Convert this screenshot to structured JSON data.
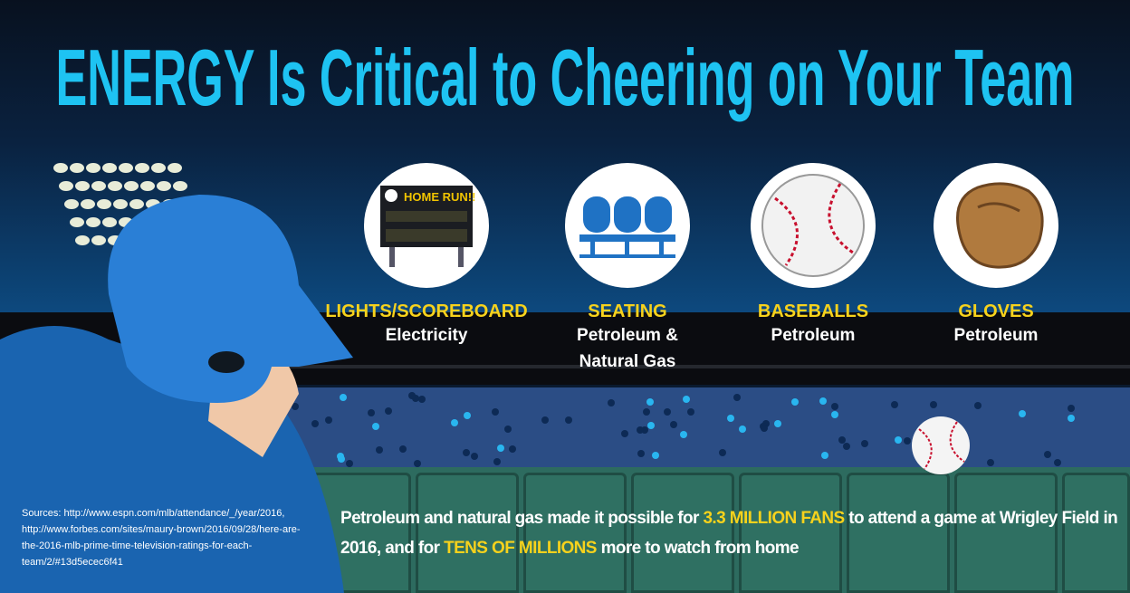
{
  "title": "ENERGY Is Critical to Cheering on Your Team",
  "colors": {
    "title": "#1ec3f2",
    "heading": "#f7d21c",
    "wall": "#2d6b5f",
    "stands": "#2b4d85"
  },
  "items": [
    {
      "icon": "scoreboard-icon",
      "heading": "LIGHTS/SCOREBOARD",
      "source": "Electricity",
      "scoreboard_text": "HOME RUN!!!"
    },
    {
      "icon": "seating-icon",
      "heading": "SEATING",
      "source": "Petroleum & Natural Gas"
    },
    {
      "icon": "baseball-icon",
      "heading": "BASEBALLS",
      "source": "Petroleum"
    },
    {
      "icon": "glove-icon",
      "heading": "GLOVES",
      "source": "Petroleum"
    }
  ],
  "statement": {
    "p1": "Petroleum and natural gas made it possible for ",
    "h1": "3.3 MILLION FANS",
    "p2": " to attend a game at Wrigley Field in 2016, and for ",
    "h2": "TENS OF MILLIONS",
    "p3": " more to watch from home"
  },
  "sources": "Sources: http://www.espn.com/mlb/attendance/_/year/2016, http://www.forbes.com/sites/maury-brown/2016/09/28/here-are-the-2016-mlb-prime-time-television-ratings-for-each-team/2/#13d5ecec6f41"
}
